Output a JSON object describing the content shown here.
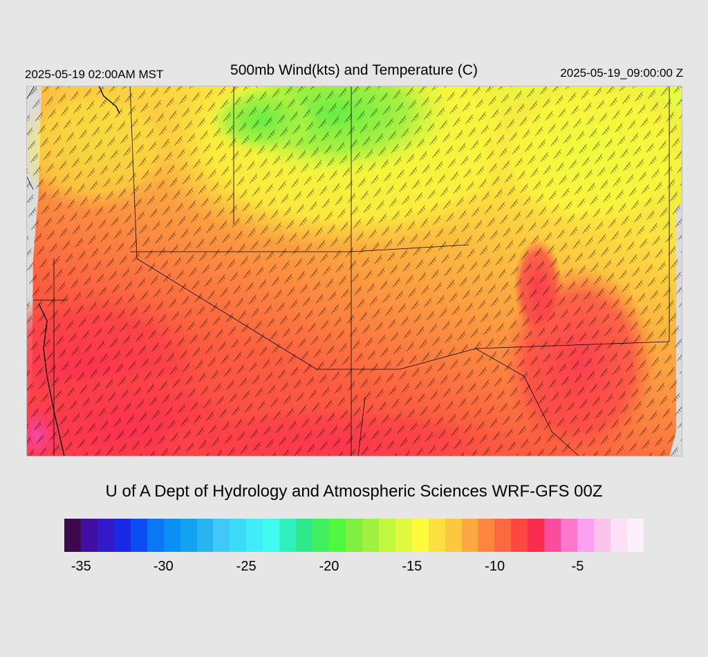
{
  "header": {
    "title": "500mb Wind(kts) and Temperature (C)",
    "local_time": "2025-05-19 02:00AM MST",
    "utc_time": "2025-05-19_09:00:00 Z"
  },
  "footer": {
    "credit": "U of A Dept of Hydrology and Atmospheric Sciences WRF-GFS 00Z"
  },
  "colorbar": {
    "colors": [
      "#3c0a4a",
      "#3e0fa0",
      "#3319c8",
      "#1a28e6",
      "#0a4cf2",
      "#0a78f5",
      "#0a90f5",
      "#10a4f0",
      "#28b4f0",
      "#40c8f8",
      "#3cdcf8",
      "#40ecf8",
      "#40fcf0",
      "#30f0c0",
      "#30e88c",
      "#40f060",
      "#50f840",
      "#80f040",
      "#a0f040",
      "#c0f840",
      "#e0f840",
      "#fcfc3c",
      "#fce040",
      "#fcc840",
      "#fca840",
      "#fc8840",
      "#fc6840",
      "#fc4840",
      "#fc2c50",
      "#fc4c9c",
      "#fc78cc",
      "#fca0f0",
      "#fcc4ec",
      "#fce0f8",
      "#fcf0fc"
    ],
    "ticks": [
      {
        "label": "-35",
        "pos": 0.029
      },
      {
        "label": "-30",
        "pos": 0.171
      },
      {
        "label": "-25",
        "pos": 0.314
      },
      {
        "label": "-20",
        "pos": 0.457
      },
      {
        "label": "-15",
        "pos": 0.6
      },
      {
        "label": "-10",
        "pos": 0.743
      },
      {
        "label": "-5",
        "pos": 0.886
      }
    ]
  }
}
